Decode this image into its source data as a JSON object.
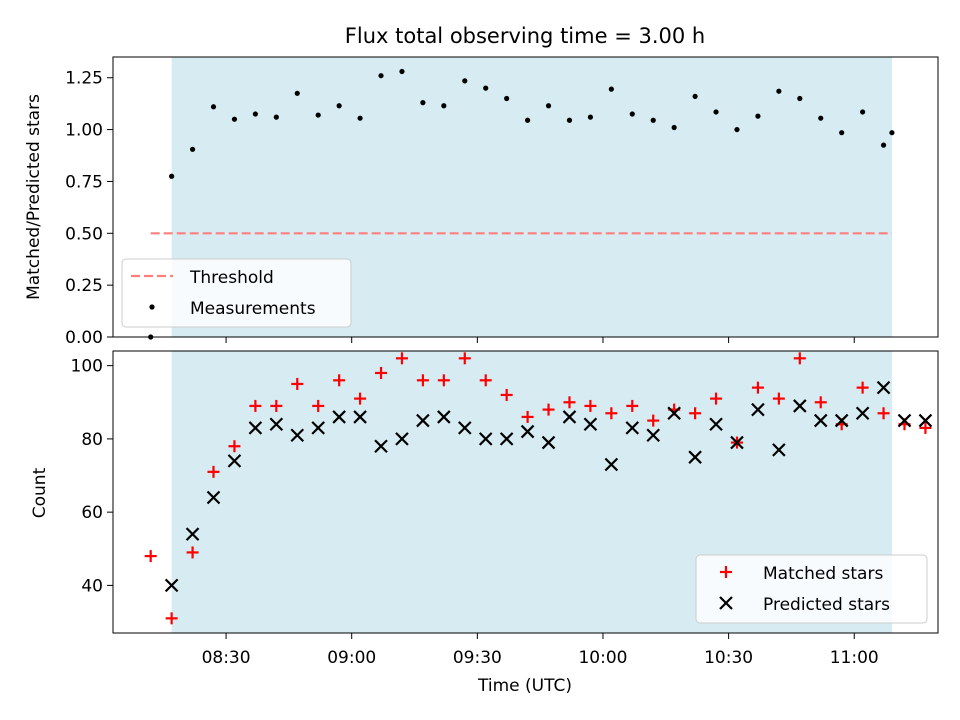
{
  "chart_data": [
    {
      "type": "scatter",
      "title": "Flux total observing time = 3.00 h",
      "xlabel": "",
      "ylabel": "Matched/Predicted stars",
      "xlim": [
        3,
        200
      ],
      "ylim": [
        0,
        1.35
      ],
      "yticks": [
        0.0,
        0.25,
        0.5,
        0.75,
        1.0,
        1.25
      ],
      "ytick_labels": [
        "0.00",
        "0.25",
        "0.50",
        "0.75",
        "1.00",
        "1.25"
      ],
      "shaded_span": [
        17,
        189
      ],
      "shaded_color": "#add8e6",
      "threshold": {
        "name": "Threshold",
        "y": 0.5,
        "x_range": [
          12,
          189
        ],
        "color": "#ff7f7f",
        "style": "dashed"
      },
      "legend": {
        "placement": "lower left",
        "entries": [
          "Threshold",
          "Measurements"
        ]
      },
      "series": [
        {
          "name": "Measurements",
          "marker": "dot",
          "color": "#000000",
          "x": [
            12,
            17,
            22,
            27,
            32,
            37,
            42,
            47,
            52,
            57,
            62,
            67,
            72,
            77,
            82,
            87,
            92,
            97,
            102,
            107,
            112,
            117,
            122,
            127,
            132,
            137,
            142,
            147,
            152,
            157,
            162,
            167,
            172,
            177,
            182,
            187,
            189
          ],
          "y": [
            0.0,
            0.775,
            0.905,
            1.11,
            1.05,
            1.075,
            1.06,
            1.175,
            1.07,
            1.115,
            1.055,
            1.26,
            1.28,
            1.13,
            1.115,
            1.235,
            1.2,
            1.15,
            1.045,
            1.115,
            1.045,
            1.06,
            1.195,
            1.075,
            1.045,
            1.01,
            1.16,
            1.085,
            1.0,
            1.065,
            1.185,
            1.15,
            1.055,
            0.985,
            1.085,
            0.925,
            0.985
          ]
        }
      ]
    },
    {
      "type": "scatter",
      "title": "",
      "xlabel": "Time (UTC)",
      "ylabel": "Count",
      "xlim": [
        3,
        200
      ],
      "ylim": [
        27,
        104
      ],
      "yticks": [
        40,
        60,
        80,
        100
      ],
      "ytick_labels": [
        "40",
        "60",
        "80",
        "100"
      ],
      "xticks": [
        30,
        60,
        90,
        120,
        150,
        180
      ],
      "xtick_labels": [
        "08:30",
        "09:00",
        "09:30",
        "10:00",
        "10:30",
        "11:00"
      ],
      "shaded_span": [
        17,
        189
      ],
      "shaded_color": "#add8e6",
      "legend": {
        "placement": "lower right",
        "entries": [
          "Matched stars",
          "Predicted stars"
        ]
      },
      "x": [
        12,
        17,
        22,
        27,
        32,
        37,
        42,
        47,
        52,
        57,
        62,
        67,
        72,
        77,
        82,
        87,
        92,
        97,
        102,
        107,
        112,
        117,
        122,
        127,
        132,
        137,
        142,
        147,
        152,
        157,
        162,
        167,
        172,
        177,
        182,
        187,
        192,
        197
      ],
      "series": [
        {
          "name": "Matched stars",
          "marker": "plus",
          "color": "#ff0000",
          "y": [
            48,
            31,
            49,
            71,
            78,
            89,
            89,
            95,
            89,
            96,
            91,
            98,
            102,
            96,
            96,
            102,
            96,
            92,
            86,
            88,
            90,
            89,
            87,
            89,
            85,
            88,
            87,
            91,
            79,
            94,
            91,
            102,
            90,
            84,
            94,
            87,
            84,
            83
          ]
        },
        {
          "name": "Predicted stars",
          "marker": "x",
          "color": "#000000",
          "y": [
            null,
            40,
            54,
            64,
            74,
            83,
            84,
            81,
            83,
            86,
            86,
            78,
            80,
            85,
            86,
            83,
            80,
            80,
            82,
            79,
            86,
            84,
            73,
            83,
            81,
            87,
            75,
            84,
            79,
            88,
            77,
            89,
            85,
            85,
            87,
            94,
            85,
            85
          ]
        }
      ]
    }
  ]
}
